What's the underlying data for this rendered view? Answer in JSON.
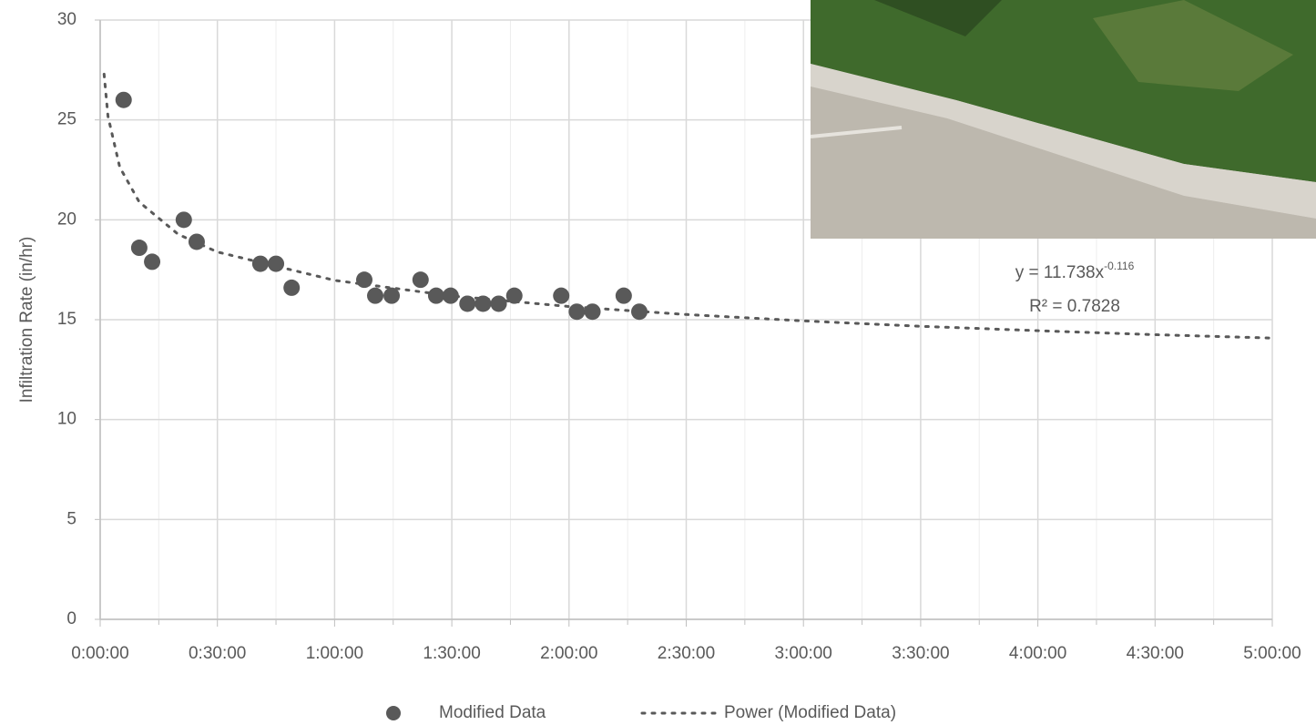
{
  "chart_data": {
    "type": "scatter",
    "y_label": "Infiltration Rate (in/hr)",
    "series": [
      {
        "name": "Modified Data",
        "color": "#595959",
        "x": [
          6,
          10,
          13.3,
          21.4,
          24.7,
          41,
          45,
          49,
          67.6,
          70.4,
          74.6,
          82,
          86,
          89.7,
          94,
          98,
          102,
          106,
          118,
          122,
          126,
          134,
          138
        ],
        "values": [
          26,
          18.6,
          17.9,
          20,
          18.9,
          17.8,
          17.8,
          16.6,
          17,
          16.2,
          16.2,
          17,
          16.2,
          16.2,
          15.8,
          15.8,
          15.8,
          16.2,
          16.2,
          15.4,
          15.4,
          16.2,
          15.4
        ]
      }
    ],
    "trendline": {
      "name": "Power (Modified Data)",
      "color": "#595959",
      "x": [
        1,
        2,
        5,
        10,
        20,
        30,
        60,
        90,
        120,
        150,
        180,
        210,
        240,
        270,
        300
      ],
      "values": [
        27.29,
        25.18,
        22.64,
        20.89,
        19.27,
        18.39,
        16.97,
        16.19,
        15.66,
        15.26,
        14.94,
        14.67,
        14.45,
        14.25,
        14.08
      ],
      "equation": "y = 11.738x",
      "exponent": "-0.116",
      "r_squared": "R² = 0.7828"
    },
    "xlim": [
      0,
      300
    ],
    "xticks": [
      {
        "value": 0,
        "label": "0:00:00"
      },
      {
        "value": 30,
        "label": "0:30:00"
      },
      {
        "value": 60,
        "label": "1:00:00"
      },
      {
        "value": 90,
        "label": "1:30:00"
      },
      {
        "value": 120,
        "label": "2:00:00"
      },
      {
        "value": 150,
        "label": "2:30:00"
      },
      {
        "value": 180,
        "label": "3:00:00"
      },
      {
        "value": 210,
        "label": "3:30:00"
      },
      {
        "value": 240,
        "label": "4:00:00"
      },
      {
        "value": 270,
        "label": "4:30:00"
      },
      {
        "value": 300,
        "label": "5:00:00"
      }
    ],
    "x_minor_ticks": [
      15,
      45,
      75,
      105,
      135,
      165,
      195,
      225,
      255,
      285
    ],
    "ylim": [
      0,
      30
    ],
    "yticks": [
      0,
      5,
      10,
      15,
      20,
      25,
      30
    ],
    "grid": true,
    "legend": "bottom"
  }
}
